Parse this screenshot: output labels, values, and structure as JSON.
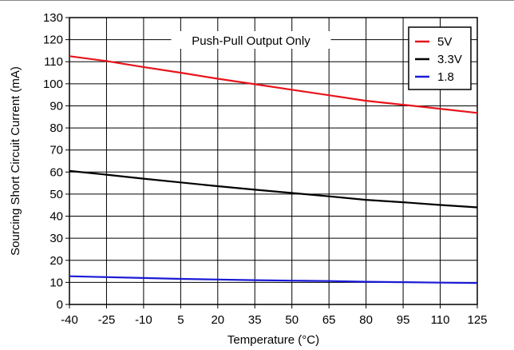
{
  "chart_data": {
    "type": "line",
    "title": "",
    "annotation": "Push-Pull Output Only",
    "xlabel": "Temperature (°C)",
    "ylabel": "Sourcing Short Circuit Current (mA)",
    "xlim": [
      -40,
      125
    ],
    "ylim": [
      0,
      130
    ],
    "xticks": [
      -40,
      -25,
      -10,
      5,
      20,
      35,
      50,
      65,
      80,
      95,
      110,
      125
    ],
    "yticks": [
      0,
      10,
      20,
      30,
      40,
      50,
      60,
      70,
      80,
      90,
      100,
      110,
      120,
      130
    ],
    "grid": true,
    "legend_position": "top-right",
    "series": [
      {
        "name": "5V",
        "color": "#e8141b",
        "x": [
          -40,
          -25,
          -10,
          5,
          20,
          35,
          50,
          65,
          80,
          95,
          110,
          125
        ],
        "y": [
          112.5,
          110.3,
          107.6,
          105,
          102.3,
          99.8,
          97.3,
          94.8,
          92.3,
          90.5,
          88.7,
          86.8
        ]
      },
      {
        "name": "3.3V",
        "color": "#000000",
        "x": [
          -40,
          -25,
          -10,
          5,
          20,
          35,
          50,
          65,
          80,
          95,
          110,
          125
        ],
        "y": [
          60.5,
          58.8,
          57,
          55.3,
          53.6,
          52,
          50.5,
          49,
          47.4,
          46.3,
          45.1,
          44
        ]
      },
      {
        "name": "1.8",
        "color": "#1a1ad6",
        "x": [
          -40,
          -25,
          -10,
          5,
          20,
          35,
          50,
          65,
          80,
          95,
          110,
          125
        ],
        "y": [
          12.8,
          12.4,
          12,
          11.6,
          11.3,
          11,
          10.8,
          10.6,
          10.3,
          10.1,
          9.9,
          9.7
        ]
      }
    ]
  }
}
